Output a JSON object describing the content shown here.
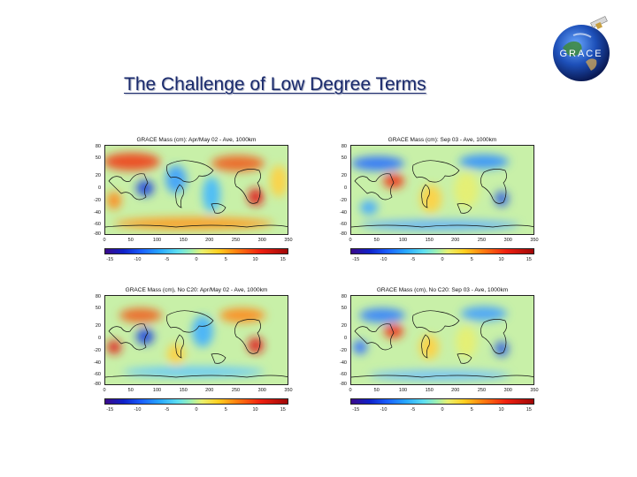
{
  "slide": {
    "title": "The Challenge of Low Degree Terms",
    "logo_text": "GRACE"
  },
  "panels": [
    {
      "id": "aprmay-full",
      "title": "GRACE Mass (cm): Apr/May 02 - Ave, 1000km",
      "lat_ticks": [
        "80",
        "50",
        "20",
        "0",
        "-20",
        "-40",
        "-60",
        "-80"
      ],
      "lon_ticks": [
        "0",
        "50",
        "100",
        "150",
        "200",
        "250",
        "300",
        "350"
      ],
      "colorbar_ticks": [
        "-15",
        "-10",
        "-5",
        "0",
        "5",
        "10",
        "15"
      ]
    },
    {
      "id": "sep-full",
      "title": "GRACE Mass (cm): Sep 03 - Ave, 1000km",
      "lat_ticks": [
        "80",
        "50",
        "20",
        "0",
        "-20",
        "-40",
        "-60",
        "-80"
      ],
      "lon_ticks": [
        "0",
        "50",
        "100",
        "150",
        "200",
        "250",
        "300",
        "350"
      ],
      "colorbar_ticks": [
        "-15",
        "-10",
        "-5",
        "0",
        "5",
        "10",
        "15"
      ]
    },
    {
      "id": "aprmay-noc20",
      "title": "GRACE Mass (cm), No C20: Apr/May 02 - Ave, 1000km",
      "lat_ticks": [
        "80",
        "50",
        "20",
        "0",
        "-20",
        "-40",
        "-60",
        "-80"
      ],
      "lon_ticks": [
        "0",
        "50",
        "100",
        "150",
        "200",
        "250",
        "300",
        "350"
      ],
      "colorbar_ticks": [
        "-15",
        "-10",
        "-5",
        "0",
        "5",
        "10",
        "15"
      ]
    },
    {
      "id": "sep-noc20",
      "title": "GRACE Mass (cm), No C20: Sep 03 - Ave, 1000km",
      "lat_ticks": [
        "80",
        "50",
        "20",
        "0",
        "-20",
        "-40",
        "-60",
        "-80"
      ],
      "lon_ticks": [
        "0",
        "50",
        "100",
        "150",
        "200",
        "250",
        "300",
        "350"
      ],
      "colorbar_ticks": [
        "-15",
        "-10",
        "-5",
        "0",
        "5",
        "10",
        "15"
      ]
    }
  ],
  "colors": {
    "title": "#1a2a6c",
    "background_field": "#c8f0a8",
    "positive_anomaly": "#f03018",
    "negative_anomaly": "#1840e8"
  }
}
